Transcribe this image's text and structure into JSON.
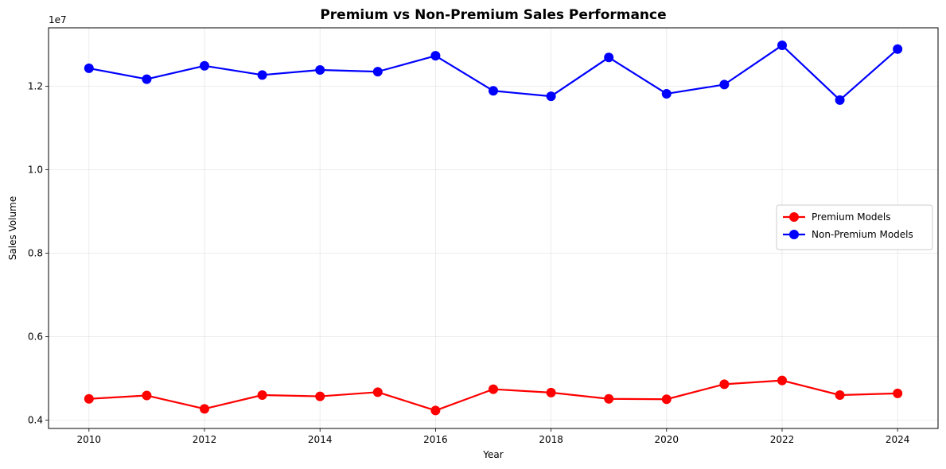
{
  "chart_data": {
    "type": "line",
    "title": "Premium vs Non-Premium Sales Performance",
    "xlabel": "Year",
    "ylabel": "Sales Volume",
    "y_offset_label": "1e7",
    "x": [
      2010,
      2011,
      2012,
      2013,
      2014,
      2015,
      2016,
      2017,
      2018,
      2019,
      2020,
      2021,
      2022,
      2023,
      2024
    ],
    "x_ticks": [
      "2010",
      "2012",
      "2014",
      "2016",
      "2018",
      "2020",
      "2022",
      "2024"
    ],
    "y_ticks": [
      "0.4",
      "0.6",
      "0.8",
      "1.0",
      "1.2"
    ],
    "xlim": [
      2009.3,
      2024.7
    ],
    "ylim": [
      3800000,
      13400000
    ],
    "grid": true,
    "legend_position": "center-right",
    "series": [
      {
        "name": "Premium Models",
        "color": "#ff0000",
        "marker": "circle",
        "values": [
          4510000,
          4590000,
          4270000,
          4600000,
          4570000,
          4670000,
          4230000,
          4740000,
          4660000,
          4510000,
          4500000,
          4860000,
          4950000,
          4600000,
          4640000
        ]
      },
      {
        "name": "Non-Premium Models",
        "color": "#0000ff",
        "marker": "circle",
        "values": [
          12430000,
          12170000,
          12490000,
          12270000,
          12390000,
          12350000,
          12730000,
          11890000,
          11760000,
          12690000,
          11820000,
          12040000,
          12980000,
          11670000,
          12890000
        ]
      }
    ]
  }
}
